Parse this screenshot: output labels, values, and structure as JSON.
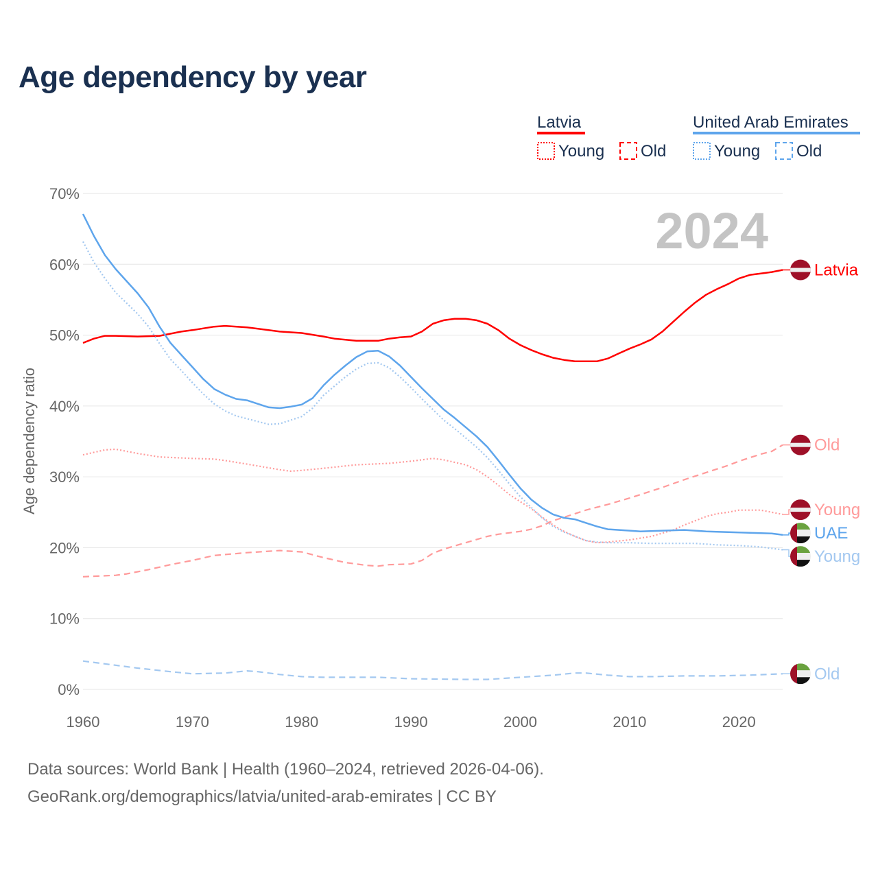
{
  "title": "Age dependency by year",
  "footer": {
    "line1": "Data sources: World Bank | Health (1960–2024, retrieved 2026-04-06).",
    "line2": "GeoRank.org/demographics/latvia/united-arab-emirates | CC BY"
  },
  "legend": {
    "groups": [
      {
        "name": "Latvia",
        "color": "#ff0000",
        "young": "Young",
        "old": "Old"
      },
      {
        "name": "United Arab Emirates",
        "color": "#5ea5ec",
        "young": "Young",
        "old": "Old"
      }
    ]
  },
  "chart_data": {
    "type": "line",
    "title": "Age dependency by year",
    "year_watermark": "2024",
    "xlabel": "",
    "ylabel": "Age dependency ratio",
    "xlim": [
      1960,
      2024
    ],
    "ylim": [
      0,
      70
    ],
    "x_ticks": [
      "1960",
      "1970",
      "1980",
      "1990",
      "2000",
      "2010",
      "2020"
    ],
    "y_ticks": [
      "0%",
      "10%",
      "20%",
      "30%",
      "40%",
      "50%",
      "60%",
      "70%"
    ],
    "grid": true,
    "series": [
      {
        "name": "Latvia",
        "label": "Latvia",
        "country": "latvia",
        "color": "#ff0000",
        "style": "solid",
        "points": [
          [
            1960,
            48.9
          ],
          [
            1961,
            49.5
          ],
          [
            1962,
            49.9
          ],
          [
            1963,
            49.9
          ],
          [
            1965,
            49.8
          ],
          [
            1967,
            49.9
          ],
          [
            1968,
            50.2
          ],
          [
            1969,
            50.5
          ],
          [
            1970,
            50.7
          ],
          [
            1972,
            51.2
          ],
          [
            1973,
            51.3
          ],
          [
            1975,
            51.1
          ],
          [
            1978,
            50.5
          ],
          [
            1980,
            50.3
          ],
          [
            1982,
            49.8
          ],
          [
            1983,
            49.5
          ],
          [
            1985,
            49.2
          ],
          [
            1987,
            49.2
          ],
          [
            1988,
            49.5
          ],
          [
            1989,
            49.7
          ],
          [
            1990,
            49.8
          ],
          [
            1991,
            50.5
          ],
          [
            1992,
            51.6
          ],
          [
            1993,
            52.1
          ],
          [
            1994,
            52.3
          ],
          [
            1995,
            52.3
          ],
          [
            1996,
            52.1
          ],
          [
            1997,
            51.6
          ],
          [
            1998,
            50.7
          ],
          [
            1999,
            49.5
          ],
          [
            2000,
            48.6
          ],
          [
            2001,
            47.9
          ],
          [
            2002,
            47.3
          ],
          [
            2003,
            46.8
          ],
          [
            2004,
            46.5
          ],
          [
            2005,
            46.3
          ],
          [
            2007,
            46.3
          ],
          [
            2008,
            46.7
          ],
          [
            2009,
            47.4
          ],
          [
            2010,
            48.1
          ],
          [
            2011,
            48.7
          ],
          [
            2012,
            49.4
          ],
          [
            2013,
            50.5
          ],
          [
            2014,
            51.9
          ],
          [
            2015,
            53.3
          ],
          [
            2016,
            54.6
          ],
          [
            2017,
            55.7
          ],
          [
            2018,
            56.5
          ],
          [
            2019,
            57.2
          ],
          [
            2020,
            58.0
          ],
          [
            2021,
            58.5
          ],
          [
            2022,
            58.7
          ],
          [
            2023,
            58.9
          ],
          [
            2024,
            59.2
          ]
        ]
      },
      {
        "name": "Latvia Old",
        "label": "Old",
        "country": "latvia",
        "color": "#ff9a9a",
        "style": "dashed",
        "points": [
          [
            1960,
            15.9
          ],
          [
            1963,
            16.1
          ],
          [
            1964,
            16.3
          ],
          [
            1966,
            16.9
          ],
          [
            1968,
            17.6
          ],
          [
            1970,
            18.2
          ],
          [
            1972,
            18.9
          ],
          [
            1975,
            19.3
          ],
          [
            1978,
            19.6
          ],
          [
            1980,
            19.4
          ],
          [
            1982,
            18.6
          ],
          [
            1984,
            17.9
          ],
          [
            1986,
            17.5
          ],
          [
            1987,
            17.4
          ],
          [
            1988,
            17.6
          ],
          [
            1990,
            17.7
          ],
          [
            1991,
            18.2
          ],
          [
            1992,
            19.2
          ],
          [
            1993,
            19.8
          ],
          [
            1995,
            20.7
          ],
          [
            1997,
            21.6
          ],
          [
            1998,
            21.9
          ],
          [
            2000,
            22.3
          ],
          [
            2001,
            22.6
          ],
          [
            2002,
            23.1
          ],
          [
            2003,
            23.8
          ],
          [
            2005,
            24.8
          ],
          [
            2006,
            25.3
          ],
          [
            2008,
            26.1
          ],
          [
            2010,
            27.0
          ],
          [
            2012,
            28.0
          ],
          [
            2013,
            28.5
          ],
          [
            2015,
            29.6
          ],
          [
            2017,
            30.6
          ],
          [
            2019,
            31.6
          ],
          [
            2020,
            32.2
          ],
          [
            2022,
            33.2
          ],
          [
            2023,
            33.6
          ],
          [
            2024,
            34.5
          ]
        ]
      },
      {
        "name": "Latvia Young",
        "label": "Young",
        "country": "latvia",
        "color": "#ff9a9a",
        "style": "dotted",
        "points": [
          [
            1960,
            33.1
          ],
          [
            1962,
            33.8
          ],
          [
            1963,
            33.9
          ],
          [
            1965,
            33.3
          ],
          [
            1967,
            32.8
          ],
          [
            1970,
            32.6
          ],
          [
            1972,
            32.5
          ],
          [
            1973,
            32.3
          ],
          [
            1975,
            31.8
          ],
          [
            1978,
            31.0
          ],
          [
            1979,
            30.8
          ],
          [
            1980,
            30.9
          ],
          [
            1982,
            31.2
          ],
          [
            1985,
            31.7
          ],
          [
            1988,
            31.9
          ],
          [
            1990,
            32.2
          ],
          [
            1992,
            32.6
          ],
          [
            1993,
            32.4
          ],
          [
            1995,
            31.7
          ],
          [
            1996,
            31.0
          ],
          [
            1997,
            30.0
          ],
          [
            1998,
            28.8
          ],
          [
            1999,
            27.5
          ],
          [
            2000,
            26.5
          ],
          [
            2001,
            25.5
          ],
          [
            2002,
            24.3
          ],
          [
            2003,
            23.2
          ],
          [
            2004,
            22.3
          ],
          [
            2005,
            21.6
          ],
          [
            2006,
            21.0
          ],
          [
            2007,
            20.7
          ],
          [
            2008,
            20.8
          ],
          [
            2010,
            21.1
          ],
          [
            2012,
            21.6
          ],
          [
            2014,
            22.5
          ],
          [
            2015,
            23.2
          ],
          [
            2016,
            23.8
          ],
          [
            2017,
            24.4
          ],
          [
            2018,
            24.8
          ],
          [
            2019,
            25.0
          ],
          [
            2020,
            25.3
          ],
          [
            2022,
            25.3
          ],
          [
            2023,
            25.0
          ],
          [
            2024,
            24.7
          ]
        ]
      },
      {
        "name": "United Arab Emirates",
        "label": "UAE",
        "country": "uae",
        "color": "#5ea5ec",
        "style": "solid",
        "points": [
          [
            1960,
            67.1
          ],
          [
            1961,
            64.0
          ],
          [
            1962,
            61.3
          ],
          [
            1963,
            59.3
          ],
          [
            1964,
            57.6
          ],
          [
            1965,
            55.9
          ],
          [
            1966,
            53.9
          ],
          [
            1967,
            51.2
          ],
          [
            1968,
            48.9
          ],
          [
            1969,
            47.2
          ],
          [
            1970,
            45.5
          ],
          [
            1971,
            43.8
          ],
          [
            1972,
            42.4
          ],
          [
            1973,
            41.6
          ],
          [
            1974,
            41.0
          ],
          [
            1975,
            40.8
          ],
          [
            1976,
            40.3
          ],
          [
            1977,
            39.8
          ],
          [
            1978,
            39.7
          ],
          [
            1979,
            39.9
          ],
          [
            1980,
            40.2
          ],
          [
            1981,
            41.1
          ],
          [
            1982,
            42.9
          ],
          [
            1983,
            44.4
          ],
          [
            1984,
            45.7
          ],
          [
            1985,
            46.9
          ],
          [
            1986,
            47.7
          ],
          [
            1987,
            47.8
          ],
          [
            1988,
            47.0
          ],
          [
            1989,
            45.7
          ],
          [
            1990,
            44.1
          ],
          [
            1991,
            42.5
          ],
          [
            1992,
            41.0
          ],
          [
            1993,
            39.5
          ],
          [
            1994,
            38.3
          ],
          [
            1995,
            37.0
          ],
          [
            1996,
            35.7
          ],
          [
            1997,
            34.2
          ],
          [
            1998,
            32.3
          ],
          [
            1999,
            30.3
          ],
          [
            2000,
            28.4
          ],
          [
            2001,
            26.8
          ],
          [
            2002,
            25.6
          ],
          [
            2003,
            24.7
          ],
          [
            2004,
            24.2
          ],
          [
            2005,
            24.0
          ],
          [
            2006,
            23.5
          ],
          [
            2007,
            23.0
          ],
          [
            2008,
            22.6
          ],
          [
            2010,
            22.4
          ],
          [
            2011,
            22.3
          ],
          [
            2013,
            22.4
          ],
          [
            2015,
            22.5
          ],
          [
            2017,
            22.3
          ],
          [
            2019,
            22.2
          ],
          [
            2021,
            22.1
          ],
          [
            2023,
            22.0
          ],
          [
            2024,
            21.8
          ]
        ]
      },
      {
        "name": "United Arab Emirates Young",
        "label": "Young",
        "country": "uae",
        "color": "#a3c8f0",
        "style": "dotted",
        "points": [
          [
            1960,
            63.2
          ],
          [
            1961,
            60.3
          ],
          [
            1962,
            58.0
          ],
          [
            1963,
            56.0
          ],
          [
            1964,
            54.5
          ],
          [
            1965,
            53.0
          ],
          [
            1966,
            51.2
          ],
          [
            1967,
            48.8
          ],
          [
            1968,
            46.6
          ],
          [
            1969,
            45.0
          ],
          [
            1970,
            43.3
          ],
          [
            1971,
            41.7
          ],
          [
            1972,
            40.3
          ],
          [
            1973,
            39.3
          ],
          [
            1974,
            38.6
          ],
          [
            1975,
            38.2
          ],
          [
            1976,
            37.8
          ],
          [
            1977,
            37.4
          ],
          [
            1978,
            37.5
          ],
          [
            1979,
            38.0
          ],
          [
            1980,
            38.5
          ],
          [
            1981,
            39.7
          ],
          [
            1982,
            41.5
          ],
          [
            1983,
            42.8
          ],
          [
            1984,
            44.1
          ],
          [
            1985,
            45.2
          ],
          [
            1986,
            46.0
          ],
          [
            1987,
            46.1
          ],
          [
            1988,
            45.4
          ],
          [
            1989,
            44.1
          ],
          [
            1990,
            42.6
          ],
          [
            1991,
            41.0
          ],
          [
            1992,
            39.5
          ],
          [
            1993,
            38.0
          ],
          [
            1994,
            36.8
          ],
          [
            1995,
            35.5
          ],
          [
            1996,
            34.2
          ],
          [
            1997,
            32.7
          ],
          [
            1998,
            30.9
          ],
          [
            1999,
            29.0
          ],
          [
            2000,
            27.2
          ],
          [
            2001,
            25.7
          ],
          [
            2002,
            24.2
          ],
          [
            2003,
            23.0
          ],
          [
            2004,
            22.2
          ],
          [
            2005,
            21.6
          ],
          [
            2006,
            21.0
          ],
          [
            2007,
            20.8
          ],
          [
            2008,
            20.7
          ],
          [
            2010,
            20.7
          ],
          [
            2012,
            20.6
          ],
          [
            2016,
            20.6
          ],
          [
            2018,
            20.4
          ],
          [
            2020,
            20.3
          ],
          [
            2022,
            20.1
          ],
          [
            2024,
            19.7
          ]
        ]
      },
      {
        "name": "United Arab Emirates Old",
        "label": "Old",
        "country": "uae",
        "color": "#a3c8f0",
        "style": "dashed",
        "points": [
          [
            1960,
            4.0
          ],
          [
            1962,
            3.6
          ],
          [
            1965,
            3.0
          ],
          [
            1968,
            2.5
          ],
          [
            1970,
            2.2
          ],
          [
            1973,
            2.3
          ],
          [
            1975,
            2.6
          ],
          [
            1976,
            2.5
          ],
          [
            1978,
            2.1
          ],
          [
            1980,
            1.8
          ],
          [
            1982,
            1.7
          ],
          [
            1987,
            1.7
          ],
          [
            1990,
            1.5
          ],
          [
            1995,
            1.4
          ],
          [
            1997,
            1.4
          ],
          [
            2000,
            1.7
          ],
          [
            2003,
            2.0
          ],
          [
            2005,
            2.3
          ],
          [
            2006,
            2.3
          ],
          [
            2008,
            2.0
          ],
          [
            2010,
            1.8
          ],
          [
            2012,
            1.8
          ],
          [
            2015,
            1.9
          ],
          [
            2018,
            1.9
          ],
          [
            2021,
            2.0
          ],
          [
            2024,
            2.2
          ]
        ]
      }
    ]
  }
}
